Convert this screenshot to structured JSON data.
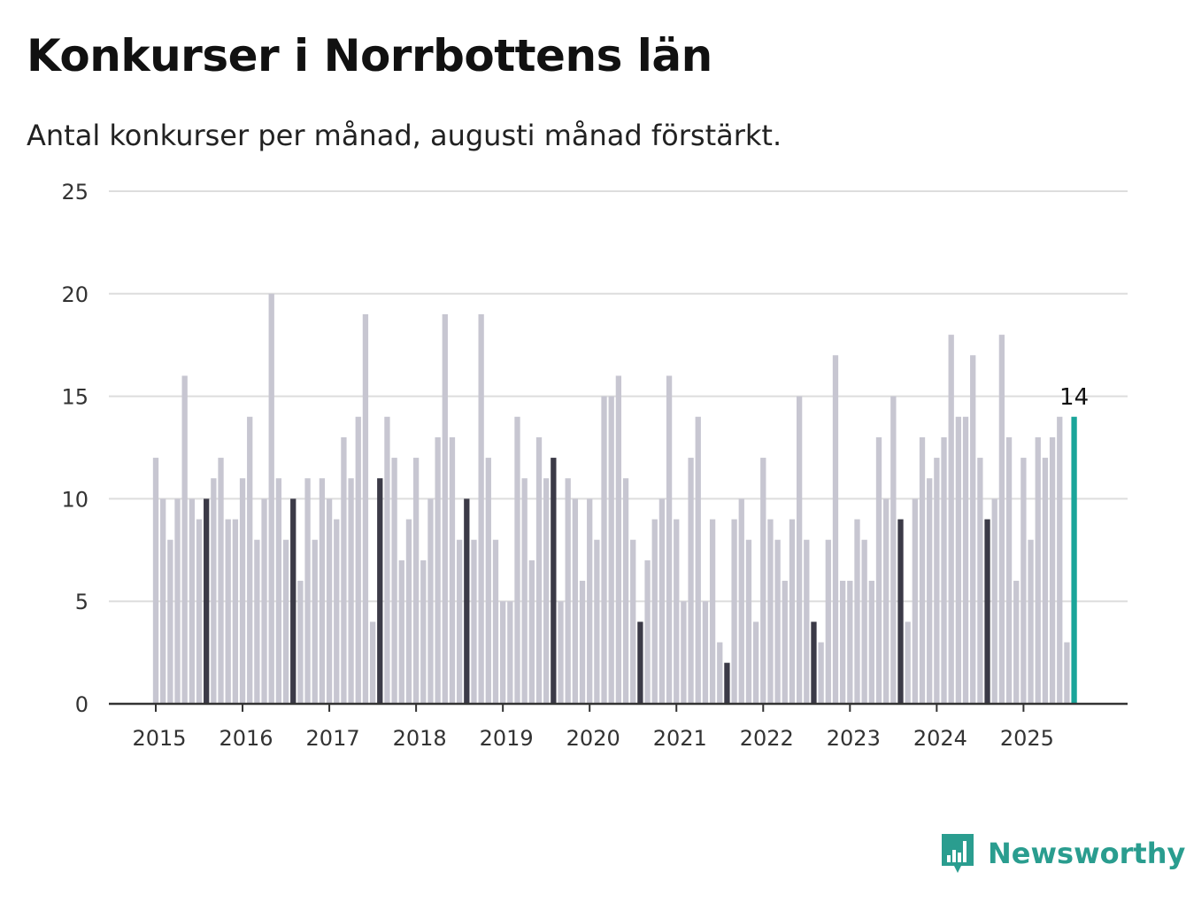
{
  "chart_data": {
    "type": "bar",
    "title": "Konkurser i Norrbottens län",
    "subtitle": "Antal konkurser per månad, augusti månad förstärkt.",
    "xlabel": "",
    "ylabel": "",
    "ylim": [
      0,
      25
    ],
    "yticks": [
      0,
      5,
      10,
      15,
      20,
      25
    ],
    "xtick_labels": [
      "2015",
      "2016",
      "2017",
      "2018",
      "2019",
      "2020",
      "2021",
      "2022",
      "2023",
      "2024",
      "2025"
    ],
    "grid": true,
    "start": "2015-01",
    "highlight_month": "augusti",
    "values": [
      12,
      10,
      8,
      10,
      16,
      10,
      9,
      10,
      11,
      12,
      9,
      9,
      11,
      14,
      8,
      10,
      20,
      11,
      8,
      10,
      6,
      11,
      8,
      11,
      10,
      9,
      13,
      11,
      14,
      19,
      4,
      11,
      14,
      12,
      7,
      9,
      12,
      7,
      10,
      13,
      19,
      13,
      8,
      10,
      8,
      19,
      12,
      8,
      5,
      5,
      14,
      11,
      7,
      13,
      11,
      12,
      5,
      11,
      10,
      6,
      10,
      8,
      15,
      15,
      16,
      11,
      8,
      4,
      7,
      9,
      10,
      16,
      9,
      5,
      12,
      14,
      5,
      9,
      3,
      2,
      9,
      10,
      8,
      4,
      12,
      9,
      8,
      6,
      9,
      15,
      8,
      4,
      3,
      8,
      17,
      6,
      6,
      9,
      8,
      6,
      13,
      10,
      15,
      9,
      4,
      10,
      13,
      11,
      12,
      13,
      18,
      14,
      14,
      17,
      12,
      9,
      10,
      18,
      13,
      6,
      12,
      8,
      13,
      12,
      13,
      14,
      3,
      14
    ],
    "last_value_label": "14",
    "colors": {
      "bar": "#c7c6d1",
      "august": "#3b3a47",
      "latest": "#1aa59a",
      "grid": "#dddddd",
      "axis": "#333333"
    }
  },
  "brand": {
    "name": "Newsworthy",
    "icon": "newsworthy-logo-icon",
    "color": "#2a9d8f"
  }
}
